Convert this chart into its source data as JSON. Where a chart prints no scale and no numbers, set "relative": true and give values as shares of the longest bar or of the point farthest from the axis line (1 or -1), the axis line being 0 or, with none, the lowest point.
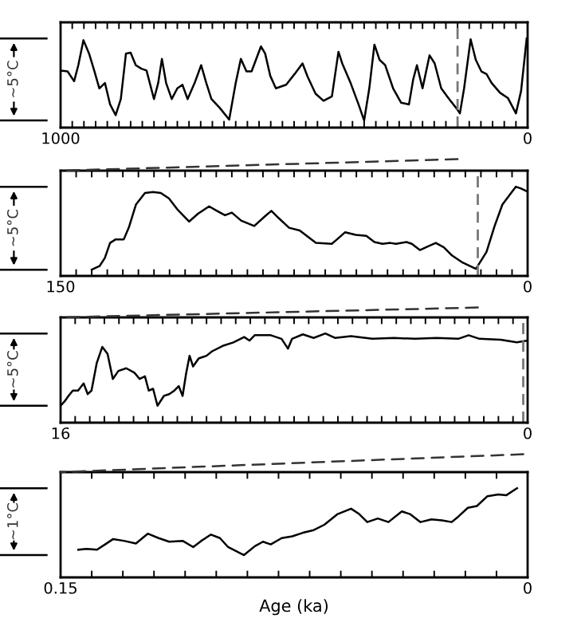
{
  "chart_data": [
    {
      "type": "line",
      "relative": true,
      "ylabel": "~5°C",
      "color": "#000000",
      "xlim": [
        1000,
        0
      ],
      "xticks": [
        1000,
        {
          "value": 975,
          "label": null
        },
        {
          "value": 950,
          "label": null
        },
        {
          "value": 925,
          "label": null
        },
        {
          "value": 900,
          "label": null
        },
        {
          "value": 875,
          "label": null
        },
        {
          "value": 850,
          "label": null
        },
        {
          "value": 825,
          "label": null
        },
        {
          "value": 800,
          "label": null
        },
        {
          "value": 775,
          "label": null
        },
        {
          "value": 750,
          "label": null
        },
        {
          "value": 725,
          "label": null
        },
        {
          "value": 700,
          "label": null
        },
        {
          "value": 675,
          "label": null
        },
        {
          "value": 650,
          "label": null
        },
        {
          "value": 625,
          "label": null
        },
        {
          "value": 600,
          "label": null
        },
        {
          "value": 575,
          "label": null
        },
        {
          "value": 550,
          "label": null
        },
        {
          "value": 525,
          "label": null
        },
        {
          "value": 500,
          "label": null
        },
        {
          "value": 475,
          "label": null
        },
        {
          "value": 450,
          "label": null
        },
        {
          "value": 425,
          "label": null
        },
        {
          "value": 400,
          "label": null
        },
        {
          "value": 375,
          "label": null
        },
        {
          "value": 350,
          "label": null
        },
        {
          "value": 325,
          "label": null
        },
        {
          "value": 300,
          "label": null
        },
        {
          "value": 275,
          "label": null
        },
        {
          "value": 250,
          "label": null
        },
        {
          "value": 225,
          "label": null
        },
        {
          "value": 200,
          "label": null
        },
        {
          "value": 175,
          "label": null
        },
        {
          "value": 150,
          "label": null
        },
        {
          "value": 125,
          "label": null
        },
        {
          "value": 100,
          "label": null
        },
        {
          "value": 75,
          "label": null
        },
        {
          "value": 50,
          "label": null
        },
        {
          "value": 25,
          "label": null
        },
        0
      ],
      "x": [
        1000,
        985,
        971,
        962,
        951,
        939,
        928,
        917,
        905,
        894,
        882,
        871,
        860,
        850,
        839,
        827,
        816,
        800,
        791,
        783,
        774,
        762,
        750,
        739,
        728,
        713,
        699,
        688,
        677,
        659,
        639,
        625,
        614,
        602,
        591,
        571,
        562,
        551,
        539,
        517,
        499,
        482,
        471,
        454,
        437,
        419,
        405,
        397,
        379,
        362,
        350,
        339,
        328,
        317,
        305,
        288,
        271,
        254,
        245,
        237,
        225,
        210,
        199,
        185,
        168,
        153,
        145,
        136,
        122,
        111,
        99,
        88,
        77,
        59,
        42,
        25,
        14,
        2
      ],
      "values": [
        0.64,
        0.63,
        0.52,
        0.7,
        0.98,
        0.83,
        0.64,
        0.44,
        0.5,
        0.26,
        0.14,
        0.32,
        0.83,
        0.84,
        0.7,
        0.66,
        0.64,
        0.32,
        0.5,
        0.77,
        0.5,
        0.32,
        0.44,
        0.48,
        0.32,
        0.5,
        0.7,
        0.5,
        0.32,
        0.22,
        0.09,
        0.5,
        0.77,
        0.63,
        0.63,
        0.91,
        0.83,
        0.58,
        0.44,
        0.48,
        0.6,
        0.72,
        0.57,
        0.38,
        0.3,
        0.35,
        0.85,
        0.72,
        0.5,
        0.26,
        0.08,
        0.44,
        0.93,
        0.76,
        0.7,
        0.44,
        0.28,
        0.26,
        0.54,
        0.7,
        0.44,
        0.81,
        0.72,
        0.44,
        0.32,
        0.22,
        0.16,
        0.44,
        0.99,
        0.76,
        0.63,
        0.6,
        0.5,
        0.39,
        0.33,
        0.16,
        0.41,
        1.0
      ],
      "ref_lines": [
        {
          "axis": "x",
          "value": 150,
          "color": "#777777",
          "line_style": "dashed"
        }
      ]
    },
    {
      "type": "line",
      "relative": true,
      "ylabel": "~5°C",
      "color": "#000000",
      "xlim": [
        150,
        0
      ],
      "xticks": [
        150,
        {
          "value": 145,
          "label": null
        },
        {
          "value": 140,
          "label": null
        },
        {
          "value": 135,
          "label": null
        },
        {
          "value": 130,
          "label": null
        },
        {
          "value": 125,
          "label": null
        },
        {
          "value": 120,
          "label": null
        },
        {
          "value": 115,
          "label": null
        },
        {
          "value": 110,
          "label": null
        },
        {
          "value": 105,
          "label": null
        },
        {
          "value": 100,
          "label": null
        },
        {
          "value": 95,
          "label": null
        },
        {
          "value": 90,
          "label": null
        },
        {
          "value": 85,
          "label": null
        },
        {
          "value": 80,
          "label": null
        },
        {
          "value": 75,
          "label": null
        },
        {
          "value": 70,
          "label": null
        },
        {
          "value": 65,
          "label": null
        },
        {
          "value": 60,
          "label": null
        },
        {
          "value": 55,
          "label": null
        },
        {
          "value": 50,
          "label": null
        },
        {
          "value": 45,
          "label": null
        },
        {
          "value": 40,
          "label": null
        },
        {
          "value": 35,
          "label": null
        },
        {
          "value": 30,
          "label": null
        },
        {
          "value": 25,
          "label": null
        },
        {
          "value": 20,
          "label": null
        },
        {
          "value": 15,
          "label": null
        },
        {
          "value": 10,
          "label": null
        },
        {
          "value": 5,
          "label": null
        },
        0
      ],
      "x": [
        140.0,
        137.5,
        135.8,
        134.1,
        132.3,
        129.7,
        128.0,
        125.8,
        122.9,
        120.3,
        117.8,
        115.2,
        112.6,
        108.7,
        105.8,
        102.3,
        99.8,
        97.2,
        95.0,
        92.0,
        87.8,
        84.3,
        82.3,
        80.0,
        76.6,
        73.2,
        70.6,
        68.0,
        62.9,
        61.2,
        58.6,
        55.2,
        51.8,
        49.2,
        46.6,
        44.1,
        42.3,
        38.9,
        37.2,
        34.6,
        32.1,
        29.5,
        26.9,
        24.3,
        20.9,
        16.6,
        13.2,
        10.6,
        8.1,
        5.5,
        3.8,
        2.1,
        0.3
      ],
      "values": [
        0.07,
        0.11,
        0.2,
        0.37,
        0.41,
        0.41,
        0.55,
        0.8,
        0.93,
        0.94,
        0.93,
        0.87,
        0.75,
        0.61,
        0.7,
        0.78,
        0.73,
        0.68,
        0.71,
        0.62,
        0.56,
        0.67,
        0.73,
        0.65,
        0.54,
        0.51,
        0.44,
        0.37,
        0.36,
        0.41,
        0.49,
        0.46,
        0.45,
        0.38,
        0.36,
        0.37,
        0.36,
        0.38,
        0.36,
        0.29,
        0.33,
        0.37,
        0.32,
        0.23,
        0.15,
        0.08,
        0.27,
        0.56,
        0.8,
        0.92,
        1.0,
        0.98,
        0.95
      ],
      "ref_lines": [
        {
          "axis": "x",
          "value": 16,
          "color": "#777777",
          "line_style": "dashed"
        }
      ]
    },
    {
      "type": "line",
      "relative": true,
      "ylabel": "~5°C",
      "color": "#000000",
      "xlim": [
        16,
        0
      ],
      "xticks": [
        16,
        {
          "value": 15.5,
          "label": null
        },
        {
          "value": 15,
          "label": null
        },
        {
          "value": 14.5,
          "label": null
        },
        {
          "value": 14,
          "label": null
        },
        {
          "value": 13.5,
          "label": null
        },
        {
          "value": 13,
          "label": null
        },
        {
          "value": 12.5,
          "label": null
        },
        {
          "value": 12,
          "label": null
        },
        {
          "value": 11.5,
          "label": null
        },
        {
          "value": 11,
          "label": null
        },
        {
          "value": 10.5,
          "label": null
        },
        {
          "value": 10,
          "label": null
        },
        {
          "value": 9.5,
          "label": null
        },
        {
          "value": 9,
          "label": null
        },
        {
          "value": 8.5,
          "label": null
        },
        {
          "value": 8,
          "label": null
        },
        {
          "value": 7.5,
          "label": null
        },
        {
          "value": 7,
          "label": null
        },
        {
          "value": 6.5,
          "label": null
        },
        {
          "value": 6,
          "label": null
        },
        {
          "value": 5.5,
          "label": null
        },
        {
          "value": 5,
          "label": null
        },
        {
          "value": 4.5,
          "label": null
        },
        {
          "value": 4,
          "label": null
        },
        {
          "value": 3.5,
          "label": null
        },
        {
          "value": 3,
          "label": null
        },
        {
          "value": 2.5,
          "label": null
        },
        {
          "value": 2,
          "label": null
        },
        {
          "value": 1.5,
          "label": null
        },
        {
          "value": 1,
          "label": null
        },
        {
          "value": 0.5,
          "label": null
        },
        0
      ],
      "x": [
        16.0,
        15.86,
        15.73,
        15.58,
        15.4,
        15.21,
        15.07,
        14.94,
        14.76,
        14.57,
        14.39,
        14.21,
        14.02,
        13.75,
        13.47,
        13.29,
        13.11,
        12.98,
        12.83,
        12.68,
        12.46,
        12.28,
        12.1,
        11.95,
        11.82,
        11.7,
        11.58,
        11.46,
        11.27,
        11.0,
        10.81,
        10.45,
        10.08,
        9.71,
        9.53,
        9.35,
        9.07,
        8.8,
        8.43,
        8.21,
        8.07,
        7.7,
        7.33,
        6.93,
        6.6,
        6.05,
        5.32,
        4.58,
        3.85,
        3.12,
        2.38,
        2.02,
        1.65,
        0.92,
        0.37,
        0.0
      ],
      "values": [
        0.19,
        0.24,
        0.3,
        0.36,
        0.36,
        0.44,
        0.32,
        0.36,
        0.67,
        0.85,
        0.77,
        0.49,
        0.58,
        0.61,
        0.56,
        0.49,
        0.52,
        0.36,
        0.38,
        0.19,
        0.3,
        0.32,
        0.36,
        0.41,
        0.3,
        0.55,
        0.75,
        0.63,
        0.72,
        0.75,
        0.8,
        0.86,
        0.9,
        0.96,
        0.92,
        0.98,
        0.98,
        0.98,
        0.94,
        0.83,
        0.94,
        0.99,
        0.95,
        1.0,
        0.95,
        0.97,
        0.94,
        0.95,
        0.94,
        0.95,
        0.94,
        0.98,
        0.94,
        0.93,
        0.9,
        0.92
      ],
      "ref_lines": [
        {
          "axis": "x",
          "value": 0.15,
          "color": "#777777",
          "line_style": "dashed"
        }
      ]
    },
    {
      "type": "line",
      "relative": true,
      "ylabel": "~1°C",
      "xlabel": "Age (ka)",
      "color": "#000000",
      "xlim": [
        0.15,
        0
      ],
      "xticks": [
        0.15,
        {
          "value": 0.14,
          "label": null
        },
        {
          "value": 0.13,
          "label": null
        },
        {
          "value": 0.12,
          "label": null
        },
        {
          "value": 0.11,
          "label": null
        },
        {
          "value": 0.1,
          "label": null
        },
        {
          "value": 0.09,
          "label": null
        },
        {
          "value": 0.08,
          "label": null
        },
        {
          "value": 0.07,
          "label": null
        },
        {
          "value": 0.06,
          "label": null
        },
        {
          "value": 0.05,
          "label": null
        },
        {
          "value": 0.04,
          "label": null
        },
        {
          "value": 0.03,
          "label": null
        },
        {
          "value": 0.02,
          "label": null
        },
        {
          "value": 0.01,
          "label": null
        },
        0
      ],
      "x": [
        0.1443,
        0.1417,
        0.1383,
        0.1357,
        0.1331,
        0.1297,
        0.1258,
        0.122,
        0.1185,
        0.1151,
        0.1108,
        0.1074,
        0.1048,
        0.1017,
        0.0988,
        0.0962,
        0.0911,
        0.0876,
        0.085,
        0.0825,
        0.079,
        0.0756,
        0.0722,
        0.0687,
        0.0653,
        0.061,
        0.0567,
        0.0541,
        0.0515,
        0.0481,
        0.0447,
        0.0404,
        0.0378,
        0.0344,
        0.0309,
        0.0275,
        0.0244,
        0.0223,
        0.0192,
        0.0163,
        0.0129,
        0.0094,
        0.0069,
        0.0034
      ],
      "values": [
        0.31,
        0.32,
        0.31,
        0.37,
        0.43,
        0.41,
        0.38,
        0.49,
        0.44,
        0.4,
        0.41,
        0.34,
        0.41,
        0.48,
        0.44,
        0.34,
        0.25,
        0.35,
        0.4,
        0.37,
        0.44,
        0.46,
        0.5,
        0.53,
        0.59,
        0.71,
        0.77,
        0.71,
        0.62,
        0.66,
        0.62,
        0.74,
        0.71,
        0.62,
        0.65,
        0.64,
        0.62,
        0.68,
        0.78,
        0.8,
        0.91,
        0.93,
        0.92,
        1.0
      ]
    }
  ]
}
